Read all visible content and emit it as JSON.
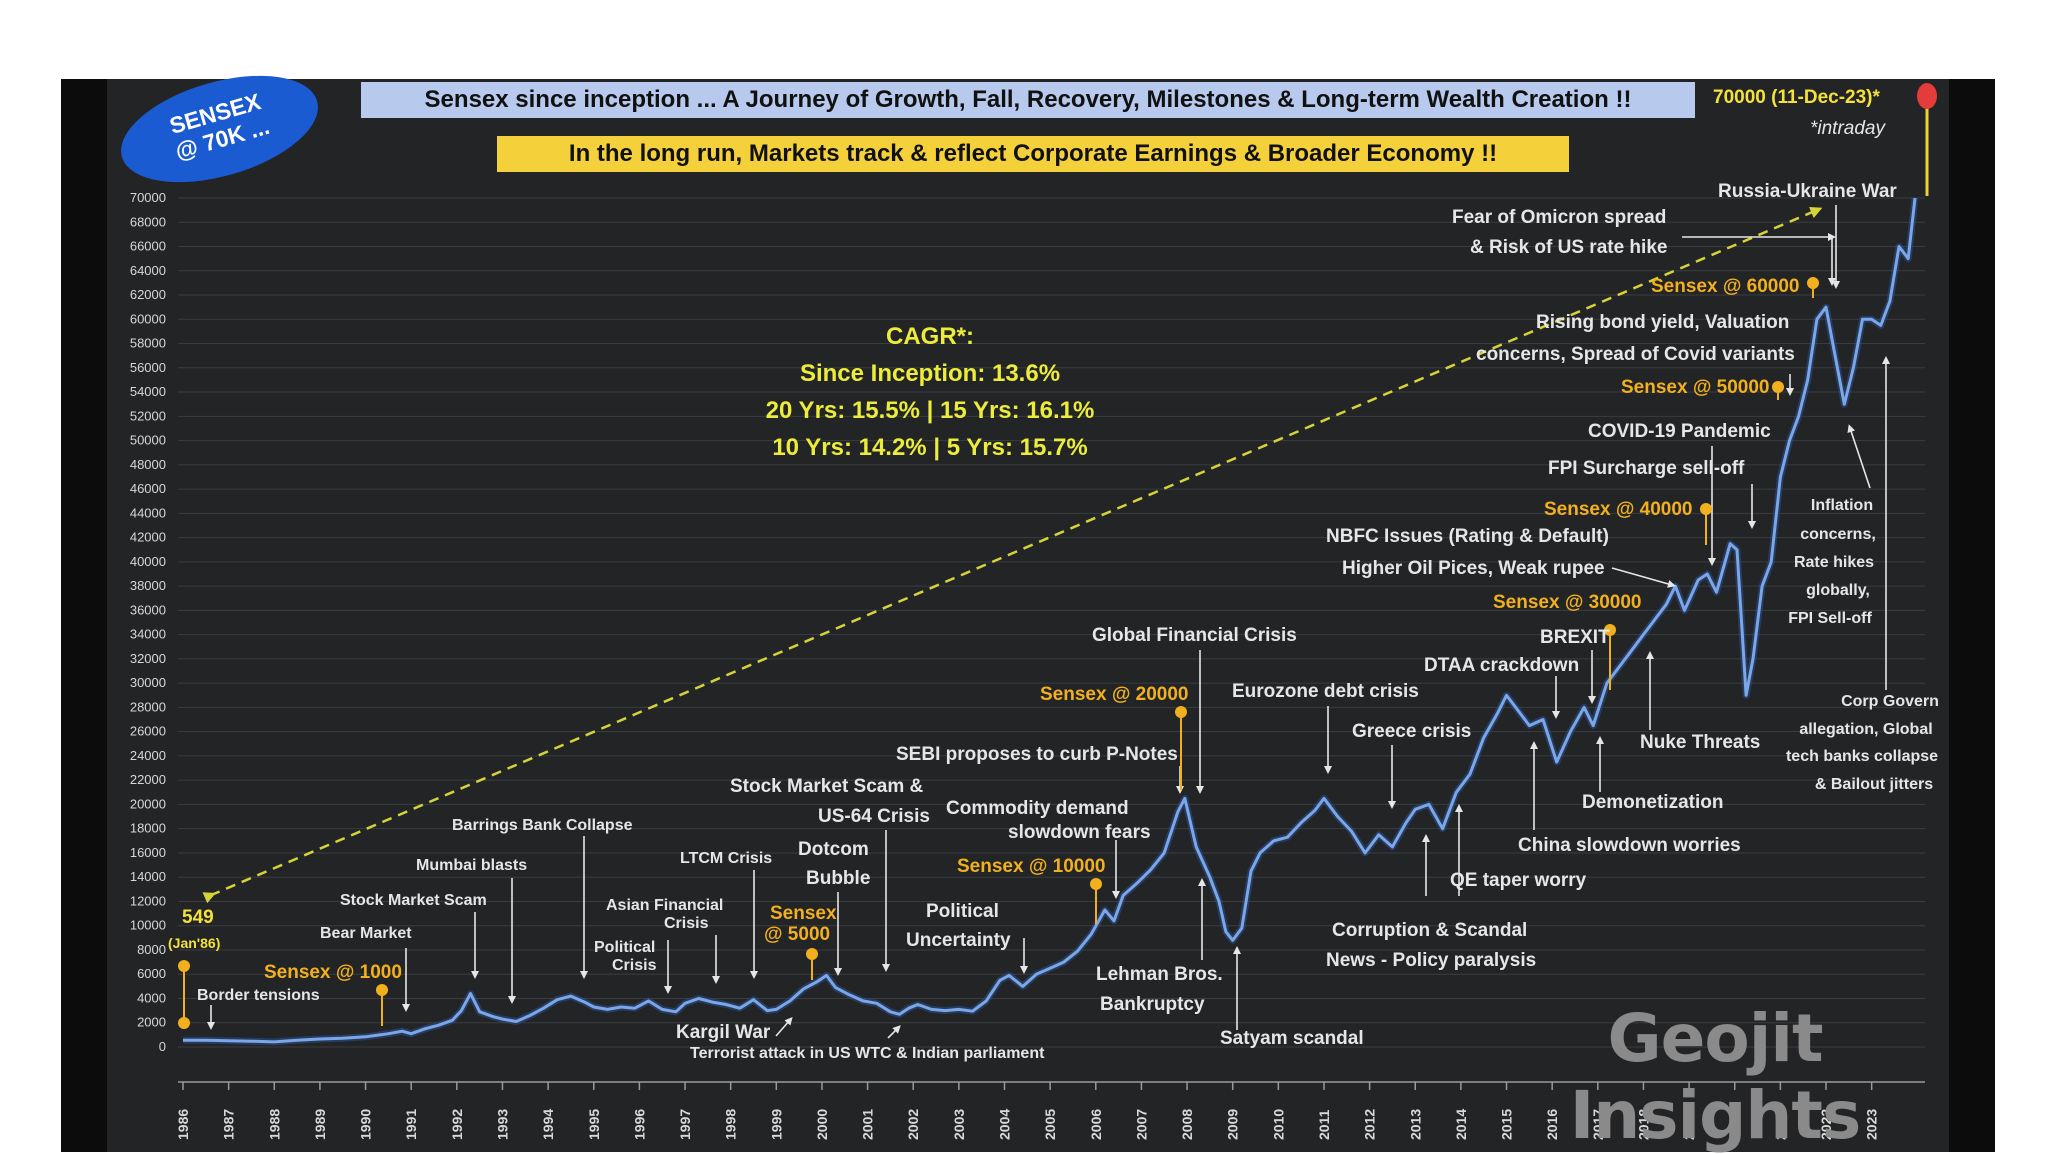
{
  "badge": {
    "line1": "SENSEX",
    "line2": "@ 70K ..."
  },
  "banner": {
    "title": "Sensex since inception ... A Journey of Growth, Fall, Recovery, Milestones & Long-term Wealth Creation !!",
    "subtitle": "In the long run, Markets track & reflect Corporate Earnings & Broader Economy !!"
  },
  "cagr": {
    "title": "CAGR*:",
    "line1": "Since Inception: 13.6%",
    "line2": "20 Yrs: 15.5% | 15 Yrs: 16.1%",
    "line3": "10 Yrs: 14.2% | 5 Yrs: 15.7%"
  },
  "watermark": "Geojit Insights",
  "colors": {
    "line": "#7ba6e8",
    "milestone": "#f2b01e",
    "trend": "#d6d33a",
    "peak": "#e43b3b",
    "background": "#222426"
  },
  "chart_data": {
    "type": "line",
    "ylim": [
      0,
      70000
    ],
    "xlim": [
      1986.0,
      2023.95
    ],
    "y_ticks": [
      0,
      2000,
      4000,
      6000,
      8000,
      10000,
      12000,
      14000,
      16000,
      18000,
      20000,
      22000,
      24000,
      26000,
      28000,
      30000,
      32000,
      34000,
      36000,
      38000,
      40000,
      42000,
      44000,
      46000,
      48000,
      50000,
      52000,
      54000,
      56000,
      58000,
      60000,
      62000,
      64000,
      66000,
      68000,
      70000
    ],
    "x_ticks": [
      "1986",
      "1987",
      "1988",
      "1989",
      "1990",
      "1991",
      "1992",
      "1993",
      "1994",
      "1995",
      "1996",
      "1997",
      "1998",
      "1999",
      "2000",
      "2001",
      "2002",
      "2003",
      "2004",
      "2005",
      "2006",
      "2007",
      "2008",
      "2009",
      "2010",
      "2011",
      "2012",
      "2013",
      "2014",
      "2015",
      "2016",
      "2017",
      "2018",
      "2019",
      "2020",
      "2021",
      "2022",
      "2023"
    ],
    "series": [
      {
        "x": [
          1986.0,
          1986.5,
          1987.0,
          1987.5,
          1988.0,
          1988.5,
          1989.0,
          1989.5,
          1990.0,
          1990.5,
          1990.8,
          1991.0,
          1991.3,
          1991.6,
          1991.9,
          1992.1,
          1992.3,
          1992.5,
          1992.8,
          1993.0,
          1993.3,
          1993.6,
          1993.9,
          1994.2,
          1994.5,
          1994.8,
          1995.0,
          1995.3,
          1995.6,
          1995.9,
          1996.2,
          1996.5,
          1996.8,
          1997.0,
          1997.3,
          1997.6,
          1997.9,
          1998.2,
          1998.5,
          1998.8,
          1999.0,
          1999.3,
          1999.6,
          1999.9,
          2000.1,
          2000.3,
          2000.6,
          2000.9,
          2001.2,
          2001.5,
          2001.7,
          2001.9,
          2002.1,
          2002.4,
          2002.7,
          2003.0,
          2003.3,
          2003.6,
          2003.9,
          2004.1,
          2004.4,
          2004.7,
          2005.0,
          2005.3,
          2005.6,
          2005.9,
          2006.2,
          2006.4,
          2006.6,
          2006.9,
          2007.2,
          2007.5,
          2007.8,
          2007.95,
          2008.2,
          2008.5,
          2008.7,
          2008.85,
          2009.0,
          2009.2,
          2009.4,
          2009.6,
          2009.9,
          2010.2,
          2010.5,
          2010.8,
          2011.0,
          2011.3,
          2011.6,
          2011.9,
          2012.2,
          2012.5,
          2012.8,
          2013.0,
          2013.3,
          2013.6,
          2013.9,
          2014.2,
          2014.5,
          2014.8,
          2015.0,
          2015.2,
          2015.5,
          2015.8,
          2016.1,
          2016.4,
          2016.7,
          2016.9,
          2017.2,
          2017.5,
          2017.8,
          2018.0,
          2018.2,
          2018.5,
          2018.7,
          2018.9,
          2019.2,
          2019.4,
          2019.6,
          2019.9,
          2020.05,
          2020.15,
          2020.25,
          2020.4,
          2020.6,
          2020.8,
          2021.0,
          2021.2,
          2021.4,
          2021.6,
          2021.8,
          2022.0,
          2022.2,
          2022.4,
          2022.6,
          2022.8,
          2023.0,
          2023.2,
          2023.4,
          2023.6,
          2023.8,
          2023.95
        ],
        "y": [
          549,
          560,
          520,
          480,
          420,
          560,
          660,
          720,
          840,
          1100,
          1300,
          1100,
          1500,
          1800,
          2200,
          3000,
          4400,
          2900,
          2500,
          2300,
          2100,
          2600,
          3200,
          3900,
          4200,
          3700,
          3300,
          3100,
          3300,
          3200,
          3800,
          3100,
          2900,
          3600,
          4000,
          3700,
          3500,
          3200,
          3900,
          3000,
          3100,
          3800,
          4800,
          5400,
          5900,
          4900,
          4300,
          3800,
          3600,
          2900,
          2700,
          3200,
          3500,
          3100,
          3000,
          3100,
          2950,
          3800,
          5500,
          5900,
          5000,
          6000,
          6500,
          7000,
          7900,
          9300,
          11300,
          10400,
          12500,
          13500,
          14600,
          16000,
          19400,
          20500,
          16500,
          14000,
          12000,
          9500,
          8800,
          9800,
          14500,
          16000,
          17000,
          17300,
          18500,
          19500,
          20500,
          19000,
          17800,
          16000,
          17500,
          16500,
          18500,
          19600,
          20000,
          18000,
          21000,
          22500,
          25500,
          27500,
          29000,
          28000,
          26500,
          27000,
          23500,
          26000,
          28000,
          26500,
          30000,
          31500,
          33000,
          34000,
          35000,
          36500,
          38000,
          36000,
          38500,
          39000,
          37500,
          41500,
          41000,
          35000,
          29000,
          32000,
          38000,
          40000,
          47000,
          50000,
          52000,
          55000,
          60000,
          61000,
          57000,
          53000,
          56000,
          60000,
          60000,
          59500,
          61500,
          66000,
          65000,
          70000
        ]
      }
    ],
    "trend_line": {
      "from": [
        1986.6,
        12500
      ],
      "to": [
        2021.8,
        69000
      ]
    },
    "start_point": {
      "value": "549",
      "date": "(Jan'86)"
    },
    "peak_label": {
      "value": "70000 (11-Dec-23)*",
      "note": "*intraday"
    },
    "milestones": [
      {
        "label": "Sensex @ 1000"
      },
      {
        "label1": "Sensex",
        "label2": "@ 5000"
      },
      {
        "label": "Sensex @ 10000"
      },
      {
        "label": "Sensex @ 20000"
      },
      {
        "label": "Sensex @ 30000"
      },
      {
        "label": "Sensex @ 40000"
      },
      {
        "label": "Sensex @ 50000"
      },
      {
        "label": "Sensex @ 60000"
      }
    ],
    "events": {
      "border": "Border tensions",
      "bear": "Bear Market",
      "scam92": "Stock Market Scam",
      "mumbai": "Mumbai blasts",
      "barings": "Barrings Bank Collapse",
      "polcrisis1": "Political",
      "polcrisis2": "Crisis",
      "asian1": "Asian Financial",
      "asian2": "Crisis",
      "ltcm": "LTCM Crisis",
      "kargil": "Kargil War",
      "wtc": "Terrorist attack in US WTC  & Indian parliament",
      "dotcom1": "Dotcom",
      "dotcom2": "Bubble",
      "scam01a": "Stock Market Scam &",
      "scam01b": "US-64 Crisis",
      "poluncert1": "Political",
      "poluncert2": "Uncertainty",
      "sebi": "SEBI proposes to curb P-Notes",
      "commodity1": "Commodity demand",
      "commodity2": "slowdown fears",
      "gfc": "Global Financial Crisis",
      "lehman1": "Lehman Bros.",
      "lehman2": "Bankruptcy",
      "satyam": "Satyam scandal",
      "eurozone": "Eurozone debt crisis",
      "greece": "Greece crisis",
      "corruption1": "Corruption & Scandal",
      "corruption2": "News - Policy paralysis",
      "qe": "QE taper worry",
      "dtaa": "DTAA crackdown",
      "brexit": "BREXIT",
      "china": "China slowdown worries",
      "demon": "Demonetization",
      "nuke": "Nuke Threats",
      "nbfc1": "NBFC Issues (Rating & Default)",
      "nbfc2": "Higher Oil Pices, Weak rupee",
      "fpi": "FPI Surcharge sell-off",
      "covid": "COVID-19 Pandemic",
      "bond1": "Rising bond yield, Valuation",
      "bond2": "concerns, Spread of Covid variants",
      "omicron1": "Fear of Omicron spread",
      "omicron2": "& Risk of US rate hike",
      "russia": "Russia-Ukraine War",
      "inflation": [
        "Inflation",
        "concerns,",
        "Rate hikes",
        "globally,",
        "FPI Sell-off"
      ],
      "corp": [
        "Corp Govern",
        "allegation, Global",
        "tech banks collapse",
        "& Bailout jitters"
      ]
    }
  }
}
